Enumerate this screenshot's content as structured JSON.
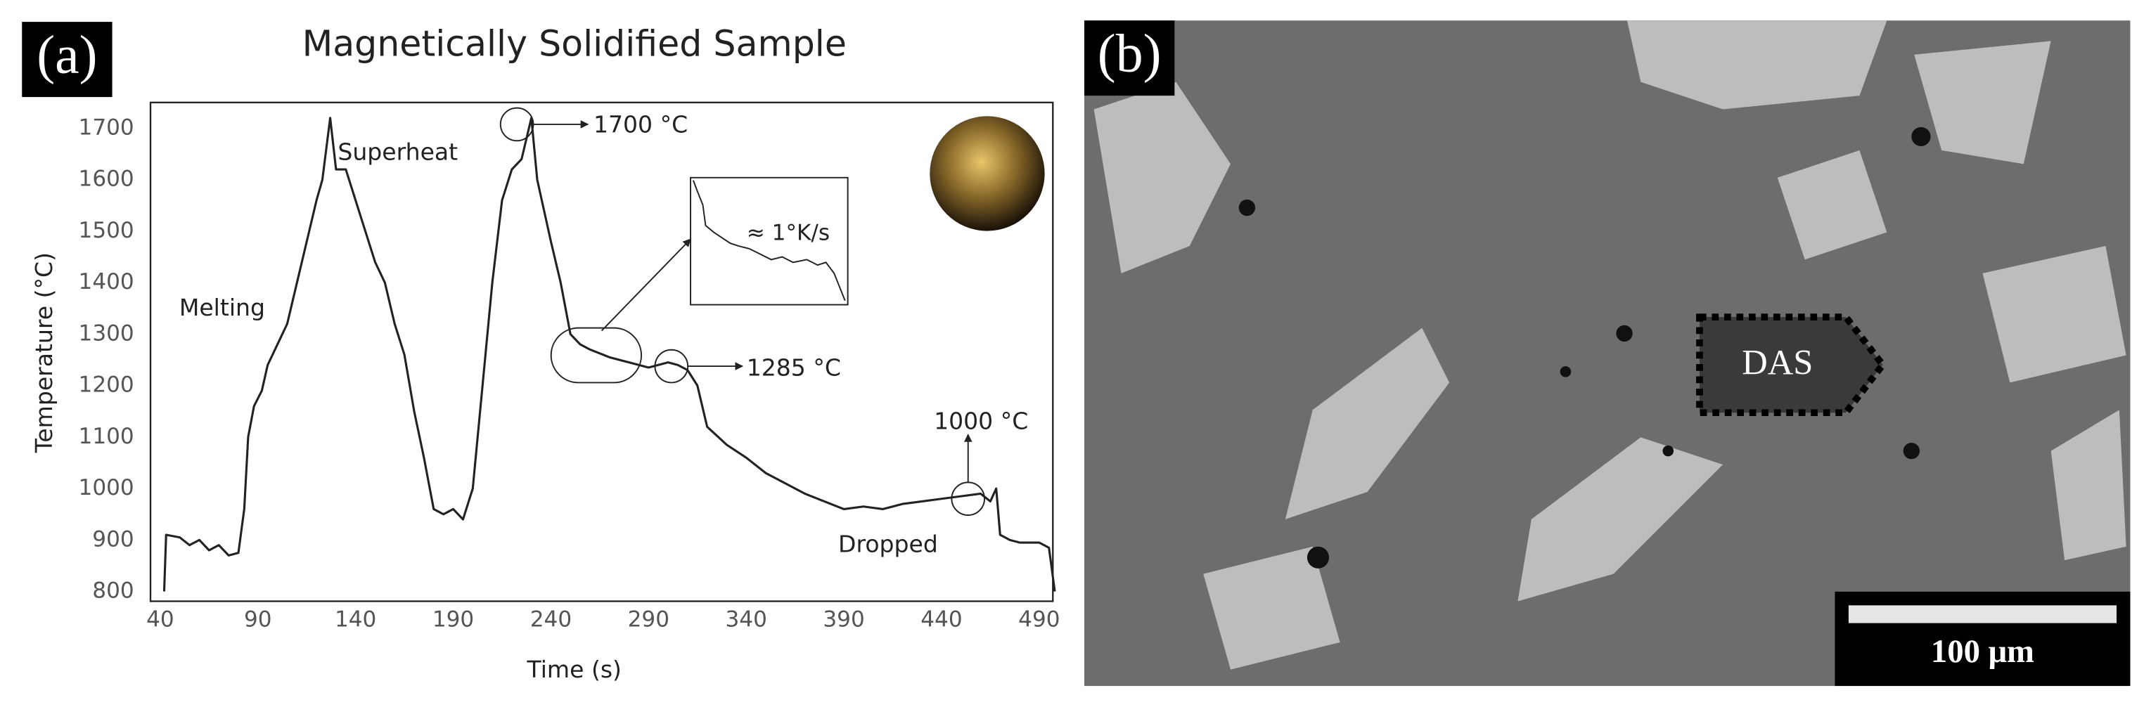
{
  "panel_a_label": "(a)",
  "chart_data": {
    "type": "line",
    "title": "Magnetically Solidified Sample",
    "x_label": "Time (s)",
    "y_label": "Temperature (°C)",
    "x": [
      42,
      43,
      50,
      55,
      60,
      65,
      70,
      75,
      80,
      83,
      85,
      88,
      92,
      95,
      100,
      105,
      110,
      115,
      120,
      123,
      127,
      130,
      135,
      140,
      145,
      150,
      155,
      160,
      165,
      170,
      175,
      180,
      185,
      190,
      195,
      200,
      205,
      210,
      215,
      220,
      225,
      230,
      233,
      240,
      245,
      250,
      255,
      260,
      270,
      280,
      290,
      300,
      305,
      310,
      315,
      320,
      330,
      340,
      350,
      360,
      370,
      380,
      390,
      400,
      410,
      420,
      430,
      440,
      450,
      460,
      465,
      468,
      470,
      475,
      480,
      490,
      495,
      498
    ],
    "values": [
      800,
      910,
      905,
      890,
      900,
      880,
      890,
      870,
      875,
      960,
      1100,
      1160,
      1190,
      1240,
      1280,
      1320,
      1400,
      1480,
      1560,
      1600,
      1720,
      1620,
      1620,
      1560,
      1500,
      1440,
      1400,
      1320,
      1260,
      1150,
      1060,
      960,
      950,
      960,
      940,
      1000,
      1200,
      1400,
      1560,
      1620,
      1640,
      1720,
      1600,
      1480,
      1400,
      1300,
      1280,
      1270,
      1255,
      1245,
      1235,
      1245,
      1240,
      1230,
      1200,
      1120,
      1085,
      1060,
      1030,
      1010,
      990,
      975,
      960,
      965,
      960,
      970,
      975,
      980,
      985,
      990,
      975,
      1000,
      910,
      900,
      895,
      895,
      885,
      800
    ],
    "color": "#222222",
    "xlim": [
      35,
      497
    ],
    "ylim": [
      781,
      1750
    ],
    "xticks": [
      40,
      90,
      140,
      190,
      240,
      290,
      340,
      390,
      440,
      490
    ],
    "yticks": [
      800,
      900,
      1000,
      1100,
      1200,
      1300,
      1400,
      1500,
      1600,
      1700
    ],
    "grid": false,
    "annotations": {
      "melting": "Melting",
      "superheat": "Superheat",
      "peak": "1700 °C",
      "rate": "≈ 1°K/s",
      "plateau": "1285 °C",
      "drop_temp": "1000 °C",
      "dropped": "Dropped"
    }
  },
  "panel_b": {
    "label": "(b)",
    "annotation": "DAS",
    "scale_bar": "100 μm"
  }
}
